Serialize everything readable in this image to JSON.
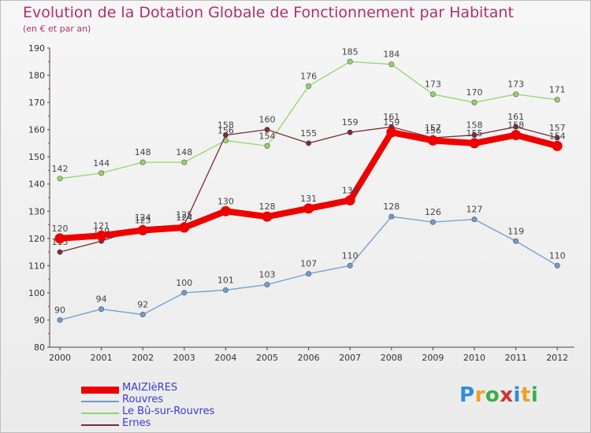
{
  "header": {
    "title": "Evolution de la Dotation Globale de Fonctionnement par Habitant",
    "subtitle": "(en € et par an)"
  },
  "chart_data": {
    "type": "line",
    "title": "Evolution de la Dotation Globale de Fonctionnement par Habitant",
    "subtitle": "(en € et par an)",
    "xlabel": "",
    "ylabel": "",
    "x": [
      "2000",
      "2001",
      "2002",
      "2003",
      "2004",
      "2005",
      "2006",
      "2007",
      "2008",
      "2009",
      "2010",
      "2011",
      "2012"
    ],
    "ylim": [
      80,
      190
    ],
    "yticks": [
      80,
      90,
      100,
      110,
      120,
      130,
      140,
      150,
      160,
      170,
      180,
      190
    ],
    "grid": false,
    "legend_position": "bottom-left",
    "series": [
      {
        "name": "MAIZIèRES",
        "color": "#ee0000",
        "emphasis": true,
        "values": [
          120,
          121,
          123,
          124,
          130,
          128,
          131,
          134,
          159,
          156,
          155,
          158,
          154
        ]
      },
      {
        "name": "Rouvres",
        "color": "#6f9ccf",
        "values": [
          90,
          94,
          92,
          100,
          101,
          103,
          107,
          110,
          128,
          126,
          127,
          119,
          110
        ]
      },
      {
        "name": "Le Bû-sur-Rouvres",
        "color": "#95d46a",
        "values": [
          142,
          144,
          148,
          148,
          156,
          154,
          176,
          185,
          184,
          173,
          170,
          173,
          171
        ]
      },
      {
        "name": "Ernes",
        "color": "#7a2b36",
        "values": [
          115,
          119,
          124,
          125,
          158,
          160,
          155,
          159,
          161,
          157,
          158,
          161,
          157
        ]
      }
    ]
  },
  "logo": {
    "letters": [
      "P",
      "r",
      "o",
      "x",
      "i",
      "t",
      "i"
    ],
    "colors": [
      "#2a8fd8",
      "#f0a020",
      "#38b048",
      "#d83030",
      "#2a8fd8",
      "#f0a020",
      "#38b048"
    ]
  }
}
